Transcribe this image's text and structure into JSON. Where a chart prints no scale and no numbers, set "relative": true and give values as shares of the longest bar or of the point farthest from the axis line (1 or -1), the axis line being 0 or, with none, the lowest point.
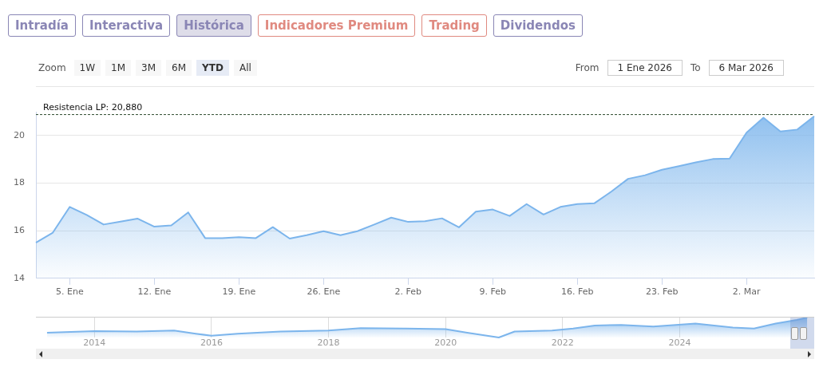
{
  "chart_data": [
    {
      "type": "other",
      "annotations": [
        "Intradía",
        "Interactiva",
        "Histórica",
        "Indicadores Premium",
        "Trading",
        "Dividendos",
        "Zoom",
        "1W",
        "1M",
        "3M",
        "6M",
        "YTD",
        "All",
        "From",
        "1 Ene 2026",
        "To",
        "6 Mar 2026"
      ]
    },
    {
      "type": "area",
      "categories": [
        null,
        null,
        "5. Ene",
        null,
        null,
        null,
        null,
        "12. Ene",
        null,
        null,
        null,
        null,
        "19. Ene",
        null,
        null,
        null,
        null,
        "26. Ene",
        null,
        null,
        null,
        null,
        "2. Feb",
        null,
        null,
        null,
        null,
        "9. Feb",
        null,
        null,
        null,
        null,
        "16. Feb",
        null,
        null,
        null,
        null,
        "23. Feb",
        null,
        null,
        null,
        null,
        "2. Mar",
        null,
        null,
        null,
        null
      ],
      "series": [
        {
          "color": "#7cb5ec",
          "values": [
            15.5,
            15.92,
            17.0,
            16.66,
            16.26,
            16.38,
            16.51,
            16.17,
            16.22,
            16.77,
            15.69,
            15.69,
            15.73,
            15.69,
            16.15,
            15.67,
            15.81,
            15.98,
            15.81,
            15.98,
            16.26,
            16.55,
            16.37,
            16.4,
            16.52,
            16.14,
            16.8,
            16.89,
            16.62,
            17.12,
            16.68,
            17.0,
            17.12,
            17.15,
            17.64,
            18.18,
            18.33,
            18.56,
            18.71,
            18.87,
            19.01,
            19.03,
            20.12,
            20.75,
            20.17,
            20.25,
            20.81
          ]
        }
      ],
      "ylim": [
        14,
        21
      ],
      "yticks": [
        14,
        16,
        18,
        20
      ],
      "grid": "y",
      "legend": false,
      "ref_lines": [
        {
          "axis": "y",
          "value": 20.88,
          "label": "Resistencia LP: 20,880",
          "color": "#2e4a2e",
          "line_style": "dashed"
        }
      ]
    },
    {
      "type": "area",
      "relative": true,
      "x": [
        2013.19,
        2014.0,
        2014.72,
        2015.36,
        2015.73,
        2016.0,
        2016.45,
        2017.18,
        2018.0,
        2018.55,
        2019.28,
        2020.0,
        2020.37,
        2020.82,
        2020.91,
        2021.18,
        2021.82,
        2022.18,
        2022.55,
        2023.0,
        2023.55,
        2024.27,
        2024.91,
        2025.27,
        2025.64,
        2026.0,
        2026.18
      ],
      "series": [
        {
          "color": "#7cb5ec",
          "values": [
            0.24,
            0.32,
            0.3,
            0.35,
            0.19,
            0.09,
            0.19,
            0.3,
            0.35,
            0.47,
            0.45,
            0.42,
            0.24,
            0.04,
            0,
            0.3,
            0.35,
            0.45,
            0.6,
            0.63,
            0.55,
            0.7,
            0.5,
            0.45,
            0.7,
            0.88,
            1
          ]
        }
      ],
      "xlim": [
        2013,
        2026.3
      ],
      "xticks": [
        2014,
        2016,
        2018,
        2020,
        2022,
        2024
      ],
      "grid": "x",
      "legend": false
    }
  ]
}
